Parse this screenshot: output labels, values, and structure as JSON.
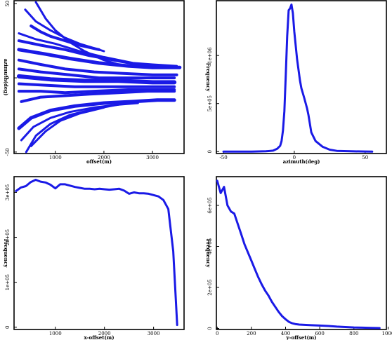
{
  "colors": {
    "series": "#1a1ae6",
    "axis": "#000000",
    "background": "#ffffff"
  },
  "chart_data": [
    {
      "id": "scatter",
      "type": "scatter",
      "xlabel": "offset(m)",
      "ylabel": "azimuth(deg)",
      "xlim": [
        150,
        3650
      ],
      "ylim": [
        -51,
        52
      ],
      "xticks": [
        {
          "value": 1000,
          "label": "1000"
        },
        {
          "value": 2000,
          "label": "2000"
        },
        {
          "value": 3000,
          "label": "3000"
        }
      ],
      "yticks": [
        {
          "value": 50,
          "label": "50"
        },
        {
          "value": 0,
          "label": "0"
        },
        {
          "value": -50,
          "label": "-50"
        }
      ],
      "bands": [
        {
          "x": [
            600,
            800,
            1000,
            1300,
            1600,
            2000,
            2400
          ],
          "y": [
            51,
            40,
            32,
            24,
            18,
            12,
            8
          ],
          "w": 3
        },
        {
          "x": [
            380,
            600,
            900,
            1200,
            1500,
            2000
          ],
          "y": [
            46,
            38,
            32,
            27,
            23,
            18
          ],
          "w": 3
        },
        {
          "x": [
            500,
            700,
            900,
            1200,
            1500,
            1900
          ],
          "y": [
            35,
            31,
            28,
            25,
            22,
            19
          ],
          "w": 4
        },
        {
          "x": [
            250,
            600,
            1000,
            1500,
            2000,
            2600,
            3000,
            3500
          ],
          "y": [
            30,
            26,
            23,
            18,
            14,
            10,
            9,
            8
          ],
          "w": 3
        },
        {
          "x": [
            250,
            700,
            1200,
            1700,
            2200,
            2700,
            3300,
            3500
          ],
          "y": [
            25,
            22,
            19,
            15,
            12,
            9,
            7,
            7
          ],
          "w": 4
        },
        {
          "x": [
            250,
            800,
            1300,
            1900,
            2500,
            3000,
            3400,
            3560
          ],
          "y": [
            19,
            16,
            13,
            10,
            8,
            7,
            7,
            7
          ],
          "w": 5
        },
        {
          "x": [
            250,
            700,
            1200,
            1800,
            2400,
            3000,
            3500
          ],
          "y": [
            12,
            9,
            6,
            4,
            3,
            2,
            2
          ],
          "w": 4
        },
        {
          "x": [
            250,
            700,
            1300,
            1900,
            2500,
            3100,
            3450
          ],
          "y": [
            6,
            4,
            2,
            0,
            0,
            0,
            0
          ],
          "w": 4
        },
        {
          "x": [
            250,
            900,
            1600,
            2300,
            3000,
            3450
          ],
          "y": [
            1,
            -1,
            -2,
            -2,
            -3,
            -3
          ],
          "w": 6
        },
        {
          "x": [
            250,
            800,
            1400,
            2000,
            2600,
            3200,
            3450
          ],
          "y": [
            -4,
            -5,
            -6,
            -6,
            -6,
            -6,
            -6
          ],
          "w": 4
        },
        {
          "x": [
            250,
            700,
            1200,
            1800,
            2500,
            3100,
            3450
          ],
          "y": [
            -9,
            -9,
            -10,
            -9,
            -8,
            -8,
            -8
          ],
          "w": 4
        },
        {
          "x": [
            300,
            700,
            1200,
            1700,
            2300,
            2900,
            3450
          ],
          "y": [
            -16,
            -13,
            -12,
            -11,
            -10,
            -9,
            -9
          ],
          "w": 4
        },
        {
          "x": [
            250,
            500,
            900,
            1400,
            2000,
            2600,
            3100,
            3450
          ],
          "y": [
            -34,
            -27,
            -22,
            -19,
            -17,
            -16,
            -15,
            -15
          ],
          "w": 5
        },
        {
          "x": [
            300,
            550,
            900,
            1300,
            1800,
            2300
          ],
          "y": [
            -42,
            -33,
            -27,
            -23,
            -20,
            -18
          ],
          "w": 3
        },
        {
          "x": [
            400,
            600,
            900,
            1300,
            1800,
            2300,
            2700
          ],
          "y": [
            -50,
            -39,
            -31,
            -25,
            -21,
            -18,
            -17
          ],
          "w": 3
        },
        {
          "x": [
            500,
            800,
            1100,
            1500,
            2000
          ],
          "y": [
            -46,
            -36,
            -29,
            -24,
            -20
          ],
          "w": 3
        }
      ]
    },
    {
      "id": "azimuth-hist",
      "type": "line",
      "xlabel": "azimuth(deg)",
      "ylabel": "Frequency",
      "xlim": [
        -55,
        65
      ],
      "ylim": [
        -20000,
        1570000
      ],
      "xticks": [
        {
          "value": -50,
          "label": "-50"
        },
        {
          "value": 0,
          "label": "0"
        },
        {
          "value": 50,
          "label": "50"
        }
      ],
      "yticks": [
        {
          "value": 0,
          "label": "0"
        },
        {
          "value": 500000,
          "label": "5e+05"
        },
        {
          "value": 1000000,
          "label": "1e+06"
        }
      ],
      "x": [
        -50,
        -30,
        -20,
        -15,
        -12,
        -10,
        -9,
        -8,
        -7,
        -6,
        -5,
        -4,
        -3,
        -2,
        -1,
        0,
        2,
        4,
        5,
        7,
        9,
        10,
        12,
        15,
        20,
        25,
        30,
        40,
        50,
        55
      ],
      "y": [
        0,
        0,
        3000,
        10000,
        30000,
        60000,
        110000,
        220000,
        420000,
        800000,
        1200000,
        1470000,
        1490000,
        1530000,
        1440000,
        1250000,
        960000,
        740000,
        660000,
        560000,
        450000,
        380000,
        200000,
        110000,
        50000,
        20000,
        8000,
        3000,
        1000,
        0
      ]
    },
    {
      "id": "x-offset-hist",
      "type": "line",
      "xlabel": "x-offset(m)",
      "ylabel": "Frequency",
      "xlim": [
        160,
        3620
      ],
      "ylim": [
        -5000,
        335000
      ],
      "xticks": [
        {
          "value": 1000,
          "label": "1000"
        },
        {
          "value": 2000,
          "label": "2000"
        },
        {
          "value": 3000,
          "label": "3000"
        }
      ],
      "yticks": [
        {
          "value": 0,
          "label": "0"
        },
        {
          "value": 100000,
          "label": "1e+05"
        },
        {
          "value": 200000,
          "label": "2e+05"
        },
        {
          "value": 300000,
          "label": "3e+05"
        }
      ],
      "x": [
        200,
        300,
        400,
        500,
        600,
        700,
        800,
        900,
        1000,
        1100,
        1200,
        1300,
        1400,
        1500,
        1600,
        1700,
        1800,
        1900,
        2000,
        2100,
        2200,
        2300,
        2400,
        2500,
        2600,
        2700,
        2800,
        2900,
        3000,
        3100,
        3200,
        3300,
        3400,
        3480
      ],
      "y": [
        303000,
        311000,
        314000,
        323000,
        328000,
        324000,
        322000,
        317000,
        309000,
        318000,
        318000,
        315000,
        312000,
        310000,
        308000,
        308000,
        307000,
        308000,
        307000,
        306000,
        307000,
        308000,
        304000,
        297000,
        300000,
        298000,
        298000,
        297000,
        294000,
        291000,
        283000,
        263000,
        169000,
        5000
      ]
    },
    {
      "id": "y-offset-hist",
      "type": "line",
      "xlabel": "y-offset(m)",
      "ylabel": "Frequency",
      "xlim": [
        -5,
        990
      ],
      "ylim": [
        -5000,
        740000
      ],
      "xticks": [
        {
          "value": 0,
          "label": "0"
        },
        {
          "value": 200,
          "label": "200"
        },
        {
          "value": 400,
          "label": "400"
        },
        {
          "value": 600,
          "label": "600"
        },
        {
          "value": 800,
          "label": "800"
        },
        {
          "value": 1000,
          "label": "1000"
        }
      ],
      "yticks": [
        {
          "value": 0,
          "label": "0"
        },
        {
          "value": 200000,
          "label": "2e+05"
        },
        {
          "value": 400000,
          "label": "4e+05"
        },
        {
          "value": 600000,
          "label": "6e+05"
        }
      ],
      "x": [
        0,
        20,
        40,
        60,
        80,
        100,
        120,
        140,
        160,
        180,
        200,
        220,
        240,
        260,
        280,
        300,
        320,
        340,
        360,
        380,
        400,
        420,
        440,
        460,
        480,
        500,
        550,
        600,
        650,
        700,
        750,
        800,
        850,
        900,
        950
      ],
      "y": [
        720000,
        660000,
        690000,
        600000,
        570000,
        560000,
        510000,
        460000,
        410000,
        370000,
        330000,
        290000,
        250000,
        215000,
        185000,
        160000,
        130000,
        105000,
        80000,
        60000,
        45000,
        32000,
        25000,
        21000,
        19000,
        18000,
        16000,
        14000,
        12000,
        9000,
        7000,
        5000,
        4000,
        3000,
        2000
      ]
    }
  ]
}
